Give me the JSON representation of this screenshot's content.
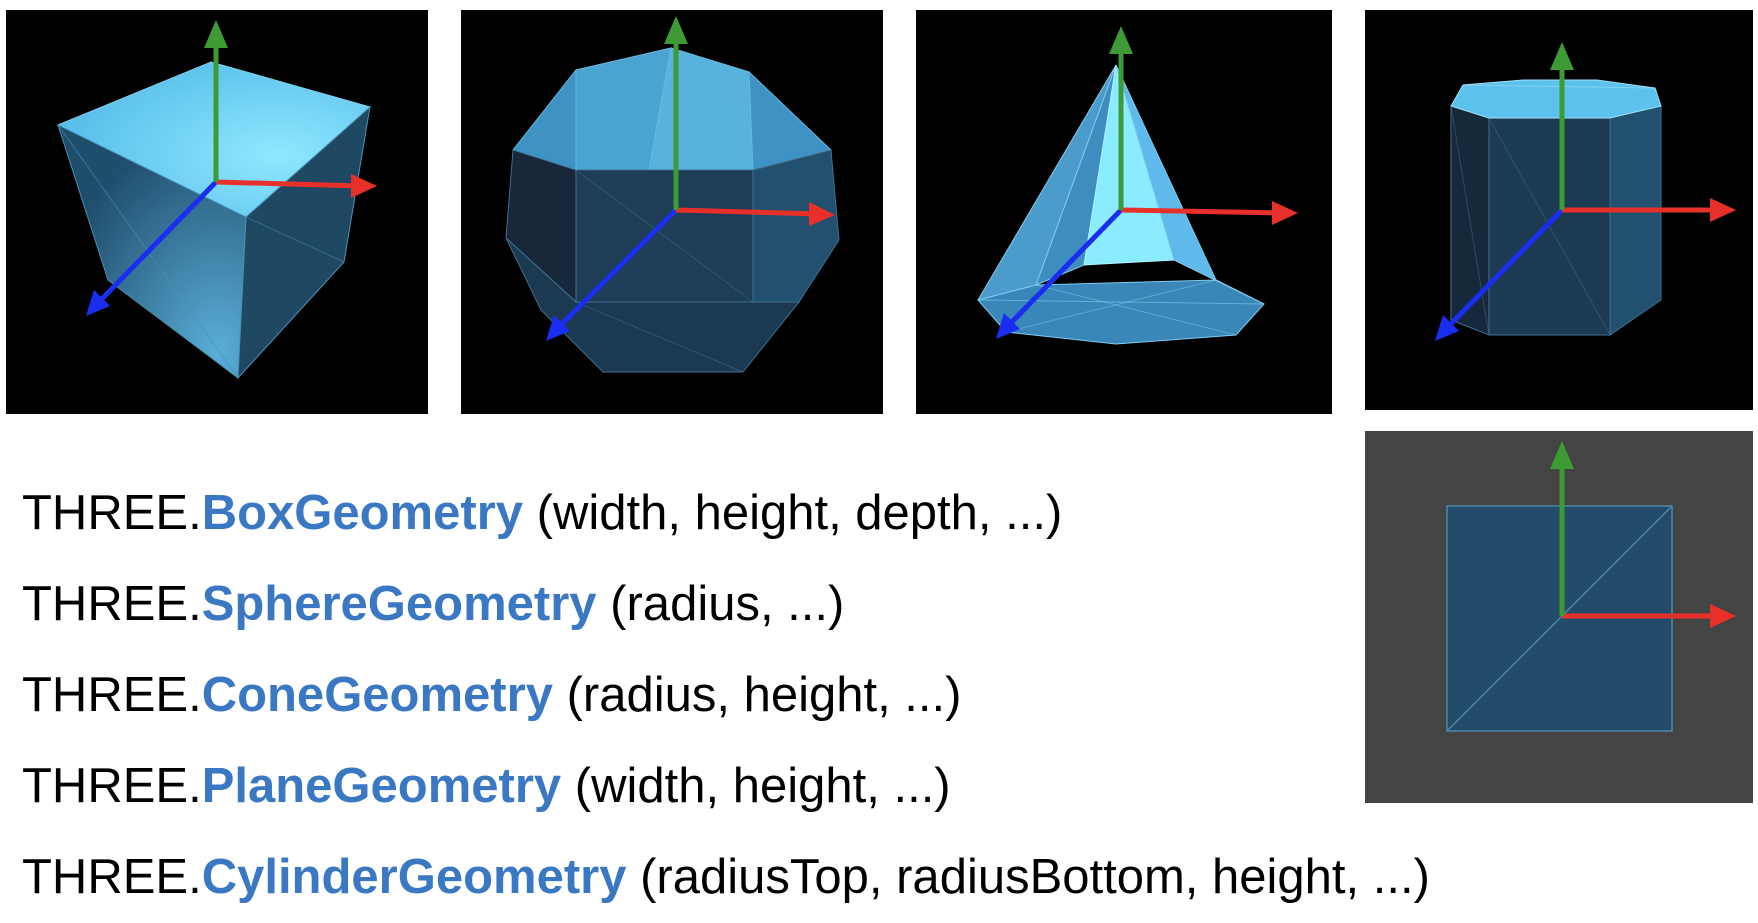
{
  "colors": {
    "axis_x": "#e8302a",
    "axis_y": "#3d9a35",
    "axis_z": "#1a2ef2",
    "class_name": "#3a78c3",
    "panel_bg": "#000000",
    "plane_bg": "#444444"
  },
  "panels": [
    {
      "shape": "box-geometry-render"
    },
    {
      "shape": "sphere-geometry-render"
    },
    {
      "shape": "cone-geometry-render"
    },
    {
      "shape": "cylinder-geometry-render"
    },
    {
      "shape": "plane-geometry-render"
    }
  ],
  "api": [
    {
      "prefix": "THREE.",
      "class": "BoxGeometry",
      "params": " (width, height, depth, ...)"
    },
    {
      "prefix": "THREE.",
      "class": "SphereGeometry",
      "params": " (radius, ...)"
    },
    {
      "prefix": "THREE.",
      "class": "ConeGeometry",
      "params": " (radius, height, ...)"
    },
    {
      "prefix": "THREE.",
      "class": "PlaneGeometry",
      "params": " (width, height, ...)"
    },
    {
      "prefix": "THREE.",
      "class": "CylinderGeometry",
      "params": " (radiusTop, radiusBottom, height, ...)"
    }
  ]
}
